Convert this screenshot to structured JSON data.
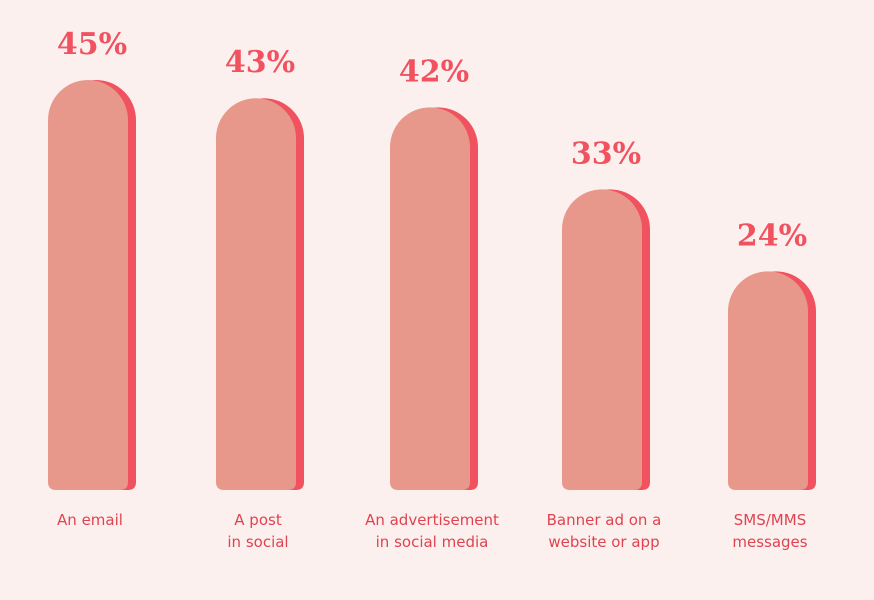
{
  "chart_data": {
    "type": "bar",
    "categories": [
      [
        "An email"
      ],
      [
        "A post",
        "in social"
      ],
      [
        "An advertisement",
        "in social media"
      ],
      [
        "Banner ad on a",
        "website or app"
      ],
      [
        "SMS/MMS",
        "messages"
      ]
    ],
    "values": [
      45,
      43,
      42,
      33,
      24
    ],
    "value_labels": [
      "45%",
      "43%",
      "42%",
      "33%",
      "24%"
    ],
    "color": "#e8978b",
    "shadow_color": "#f0525f"
  }
}
